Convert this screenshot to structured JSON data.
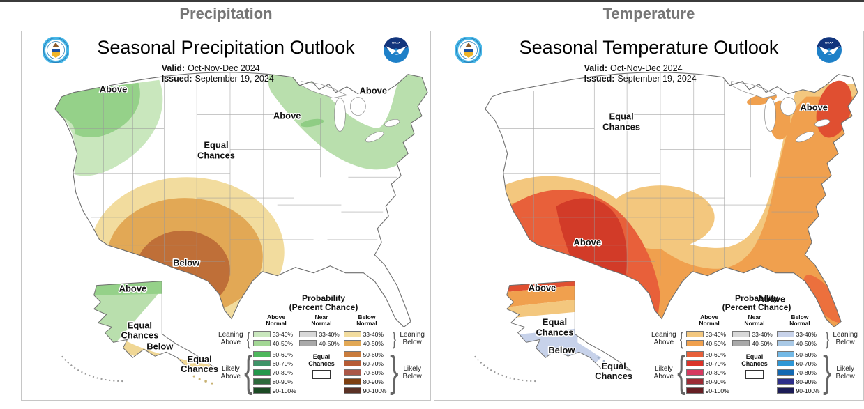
{
  "page": {
    "col_headers": {
      "precip": "Precipitation",
      "temp": "Temperature"
    }
  },
  "precip": {
    "title": "Seasonal Precipitation Outlook",
    "meta": {
      "valid_label": "Valid:",
      "valid": "Oct-Nov-Dec 2024",
      "issued_label": "Issued:",
      "issued": "September 19, 2024"
    },
    "labels": {
      "pnw": "Above",
      "ec1": "Equal",
      "ec2": "Chances",
      "mi": "Above",
      "ne": "Above",
      "tx": "Below",
      "ak_above": "Above",
      "ak_ec1": "Equal",
      "ak_ec2": "Chances",
      "ak_below": "Below",
      "hi_ec1": "Equal",
      "hi_ec2": "Chances"
    }
  },
  "temp": {
    "title": "Seasonal Temperature Outlook",
    "meta": {
      "valid_label": "Valid:",
      "valid": "Oct-Nov-Dec 2024",
      "issued_label": "Issued:",
      "issued": "September 19, 2024"
    },
    "labels": {
      "ec1": "Equal",
      "ec2": "Chances",
      "ne": "Above",
      "tx": "Above",
      "fl": "Above",
      "ak_above": "Above",
      "ak_ec1": "Equal",
      "ak_ec2": "Chances",
      "ak_below": "Below",
      "se_ec1": "Equal",
      "se_ec2": "Chances"
    }
  },
  "legend": {
    "title1": "Probability",
    "title2": "(Percent Chance)",
    "above1": "Above",
    "above2": "Normal",
    "near1": "Near",
    "near2": "Normal",
    "below1": "Below",
    "below2": "Normal",
    "rows": [
      "33-40%",
      "40-50%",
      "50-60%",
      "60-70%",
      "70-80%",
      "80-90%",
      "90-100%"
    ],
    "equal1": "Equal",
    "equal2": "Chances",
    "leaning_above1": "Leaning",
    "leaning_above2": "Above",
    "likely_above1": "Likely",
    "likely_above2": "Above",
    "leaning_below1": "Leaning",
    "leaning_below2": "Below",
    "likely_below1": "Likely",
    "likely_below2": "Below"
  },
  "colors": {
    "top_border": "#3b3b3b",
    "header_gray": "#767676",
    "precip_above_scale": [
      "#c9e7bd",
      "#a3d795",
      "#4eb75c",
      "#3f9368",
      "#23984b",
      "#2d6a3c",
      "#1b4a24"
    ],
    "near_normal_scale": [
      "#d8d8d8",
      "#a9a9a9"
    ],
    "precip_below_scale": [
      "#f2dc9e",
      "#e2a855",
      "#c97c3d",
      "#b65b35",
      "#aa5748",
      "#7d3f10",
      "#5a3125"
    ],
    "temp_above_scale": [
      "#f3c77e",
      "#f0a04e",
      "#e8603a",
      "#da3328",
      "#d63960",
      "#9c2b35",
      "#661f24"
    ],
    "temp_below_scale": [
      "#c7d2ea",
      "#a9c9e6",
      "#73b9e6",
      "#2e97d6",
      "#1268b2",
      "#2d2e8a",
      "#1c1c56"
    ],
    "equal_chances_box": "#ffffff",
    "map": {
      "outline": "#6e6e6e",
      "precip": {
        "pnw_outer": "#c9e7bd",
        "pnw_inner": "#95d189",
        "ne_band": "#b9dfad",
        "mi_spot": "#8fcd84",
        "ring1": "#f2dc9e",
        "ring2": "#e2a855",
        "ring3": "#bf6f38",
        "ak_green": "#b9dfad",
        "ak_green_dark": "#95d189",
        "ak_tan": "#f0d795",
        "island": "#c8b273"
      },
      "temp": {
        "ring1": "#f3c77e",
        "ring2": "#f0a04e",
        "ring3": "#e8603a",
        "ring4": "#d23b28",
        "ar_oval": "#f3c77e",
        "ne_red": "#e04f31",
        "fl": "#ec703d",
        "mi": "#f0a04e",
        "ak_red": "#e04f31",
        "ak_orange": "#f0a04e",
        "ak_tan": "#f3c77e",
        "ak_blue": "#c7d2ea",
        "island": "#9fb0c8"
      }
    },
    "noaa_dark": "#12357d",
    "noaa_light": "#1e80c8",
    "doc_ring": "#49b8e8",
    "doc_shield_top": "#1b4fa0",
    "doc_shield_bottom": "#f0b429",
    "doc_eagle": "#8a5a2a"
  }
}
